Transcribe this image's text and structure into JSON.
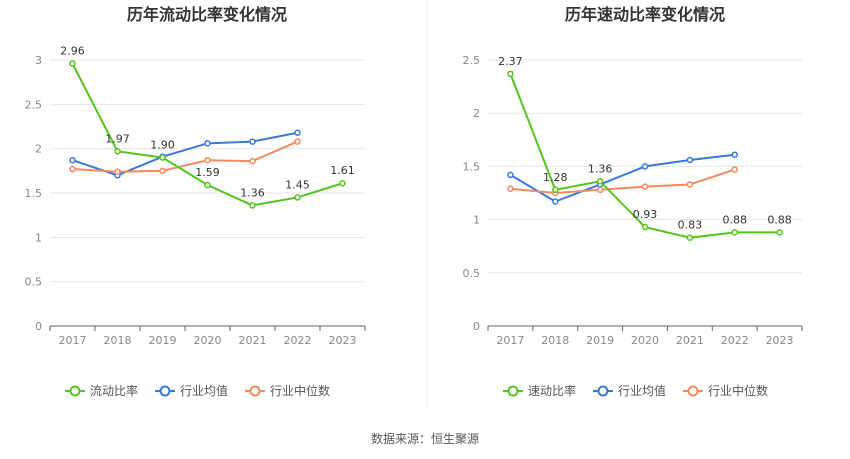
{
  "chart_data": [
    {
      "type": "line",
      "title": "历年流动比率变化情况",
      "categories": [
        "2017",
        "2018",
        "2019",
        "2020",
        "2021",
        "2022",
        "2023"
      ],
      "yticks": [
        "0",
        "0.5",
        "1",
        "1.5",
        "2",
        "2.5",
        "3"
      ],
      "ylim": [
        0,
        3
      ],
      "series": [
        {
          "name": "流动比率",
          "color": "#52c41a",
          "values": [
            2.96,
            1.97,
            1.9,
            1.59,
            1.36,
            1.45,
            1.61
          ],
          "labels": [
            "2.96",
            "1.97",
            "1.90",
            "1.59",
            "1.36",
            "1.45",
            "1.61"
          ]
        },
        {
          "name": "行业均值",
          "color": "#3a78d8",
          "values": [
            1.87,
            1.7,
            1.91,
            2.06,
            2.08,
            2.18,
            null
          ]
        },
        {
          "name": "行业中位数",
          "color": "#f08a5d",
          "values": [
            1.77,
            1.74,
            1.75,
            1.87,
            1.86,
            2.08,
            null
          ]
        }
      ]
    },
    {
      "type": "line",
      "title": "历年速动比率变化情况",
      "categories": [
        "2017",
        "2018",
        "2019",
        "2020",
        "2021",
        "2022",
        "2023"
      ],
      "yticks": [
        "0",
        "0.5",
        "1",
        "1.5",
        "2",
        "2.5"
      ],
      "ylim": [
        0,
        2.5
      ],
      "series": [
        {
          "name": "速动比率",
          "color": "#52c41a",
          "values": [
            2.37,
            1.28,
            1.36,
            0.93,
            0.83,
            0.88,
            0.88
          ],
          "labels": [
            "2.37",
            "1.28",
            "1.36",
            "0.93",
            "0.83",
            "0.88",
            "0.88"
          ]
        },
        {
          "name": "行业均值",
          "color": "#3a78d8",
          "values": [
            1.42,
            1.17,
            1.33,
            1.5,
            1.56,
            1.61,
            null
          ]
        },
        {
          "name": "行业中位数",
          "color": "#f08a5d",
          "values": [
            1.29,
            1.25,
            1.28,
            1.31,
            1.33,
            1.47,
            null
          ]
        }
      ]
    }
  ],
  "source": "数据来源：恒生聚源"
}
